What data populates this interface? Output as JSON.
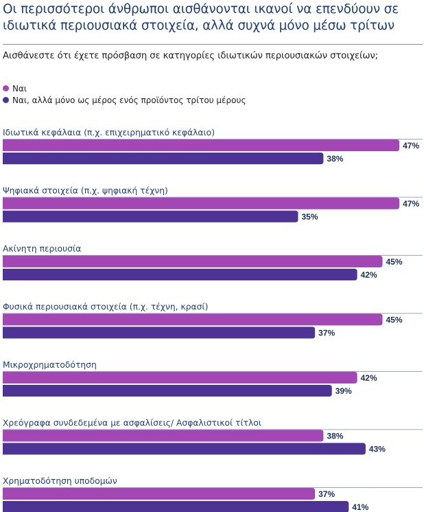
{
  "title": "Οι περισσότεροι άνθρωποι αισθάνονται ικανοί να επενδύουν σε ιδιωτικά περιουσιακά στοιχεία, αλλά συχνά μόνο μέσω τρίτων",
  "colors": {
    "title": "#1f3f73",
    "series_yes": "#a347b5",
    "series_third_party": "#4c3394",
    "separator": "#9aa6bf",
    "value_text": "#1c2f5a"
  },
  "chart_data": {
    "type": "bar",
    "orientation": "horizontal",
    "title": "Οι περισσότεροι άνθρωποι αισθάνονται ικανοί να επενδύουν σε ιδιωτικά περιουσιακά στοιχεία, αλλά συχνά μόνο μέσω τρίτων",
    "subtitle": "Αισθάνεστε ότι έχετε πρόσβαση σε κατηγορίες ιδιωτικών περιουσιακών στοιχείων;",
    "xlabel": "",
    "ylabel": "",
    "xlim": [
      0,
      50
    ],
    "grid": false,
    "legend_position": "top-left",
    "value_suffix": "%",
    "categories": [
      "Ιδιωτικά κεφάλαια (π.χ. επιχειρηματικό κεφάλαιο)",
      "Ψηφιακά στοιχεία (π.χ. ψηφιακή τέχνη)",
      "Ακίνητη περιουσία",
      "Φυσικά περιουσιακά στοιχεία (π.χ. τέχνη, κρασί)",
      "Μικροχρηματοδότηση",
      "Χρεόγραφα συνδεδεμένα με ασφαλίσεις/ Ασφαλιστικοί τίτλοι",
      "Χρηματοδότηση  υποδομών"
    ],
    "series": [
      {
        "name": "Ναι",
        "color": "#a347b5",
        "values": [
          47,
          47,
          45,
          45,
          42,
          38,
          37
        ]
      },
      {
        "name": "Ναι, αλλά μόνο ως μέρος ενός προϊόντος τρίτου μέρους",
        "color": "#4c3394",
        "values": [
          38,
          35,
          42,
          37,
          39,
          43,
          41
        ]
      }
    ]
  }
}
